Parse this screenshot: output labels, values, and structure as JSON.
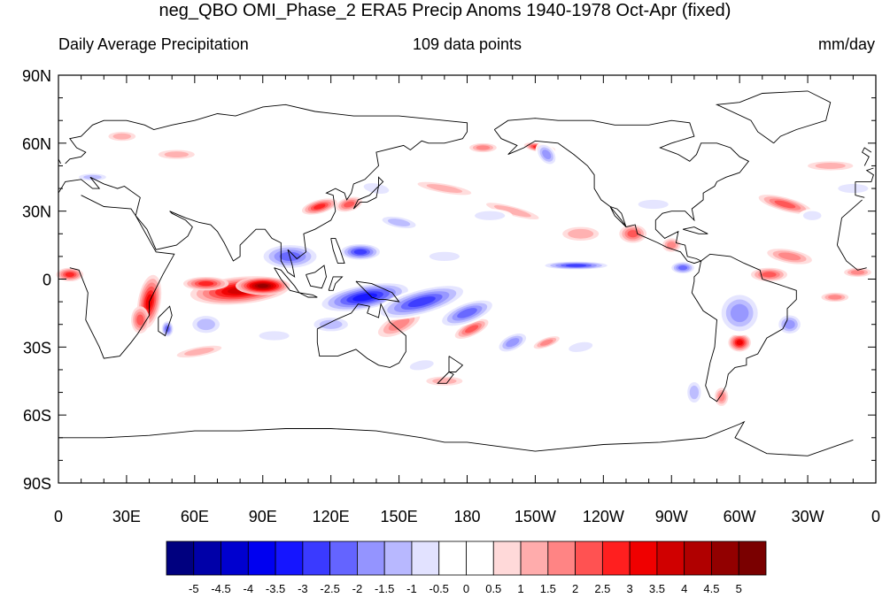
{
  "title": "neg_QBO OMI_Phase_2 ERA5 Precip Anoms 1940-1978 Oct-Apr (fixed)",
  "subtitle_left": "Daily Average Precipitation",
  "subtitle_center": "109 data points",
  "subtitle_right": "mm/day",
  "y_ticks": [
    "90N",
    "60N",
    "30N",
    "0",
    "30S",
    "60S",
    "90S"
  ],
  "x_ticks": [
    "0",
    "30E",
    "60E",
    "90E",
    "120E",
    "150E",
    "180",
    "150W",
    "120W",
    "90W",
    "60W",
    "30W",
    "0"
  ],
  "colorbar": {
    "labels": [
      "-5",
      "-4.5",
      "-4",
      "-3.5",
      "-3",
      "-2.5",
      "-2",
      "-1.5",
      "-1",
      "-0.5",
      "0",
      "0.5",
      "1",
      "1.5",
      "2",
      "2.5",
      "3",
      "3.5",
      "4",
      "4.5",
      "5"
    ],
    "colors": [
      "#00007f",
      "#0000a8",
      "#0000cf",
      "#0000f0",
      "#1515ff",
      "#3a3aff",
      "#6464ff",
      "#9494ff",
      "#b8b8ff",
      "#e2e2ff",
      "#ffffff",
      "#ffffff",
      "#ffd9d9",
      "#ffacac",
      "#ff8484",
      "#ff5252",
      "#ff1f1f",
      "#f00000",
      "#d00000",
      "#b00000",
      "#920000",
      "#7a0000"
    ]
  },
  "legend_colors": {
    "negative": "#1c1cd8",
    "positive": "#e01010",
    "coastline": "#000000"
  }
}
